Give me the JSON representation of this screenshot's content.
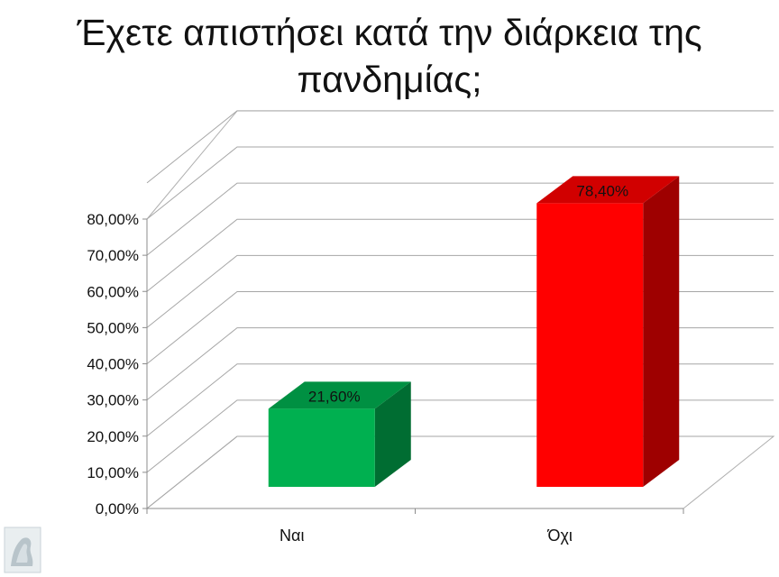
{
  "slide": {
    "title_line1": "Έχετε απιστήσει κατά την διάρκεια της",
    "title_line2": "πανδημίας;"
  },
  "chart_data": {
    "type": "bar",
    "title": "Έχετε απιστήσει κατά την διάρκεια της πανδημίας;",
    "categories": [
      "Ναι",
      "Όχι"
    ],
    "values": [
      21.6,
      78.4
    ],
    "value_labels": [
      "21,60%",
      "78,40%"
    ],
    "ylim": [
      0,
      80
    ],
    "yticks": [
      0,
      10,
      20,
      30,
      40,
      50,
      60,
      70,
      80
    ],
    "ytick_labels": [
      "0,00%",
      "10,00%",
      "20,00%",
      "30,00%",
      "40,00%",
      "50,00%",
      "60,00%",
      "70,00%",
      "80,00%"
    ],
    "grid": true,
    "style": "3d",
    "colors": [
      "#00b050",
      "#ff0000"
    ]
  }
}
